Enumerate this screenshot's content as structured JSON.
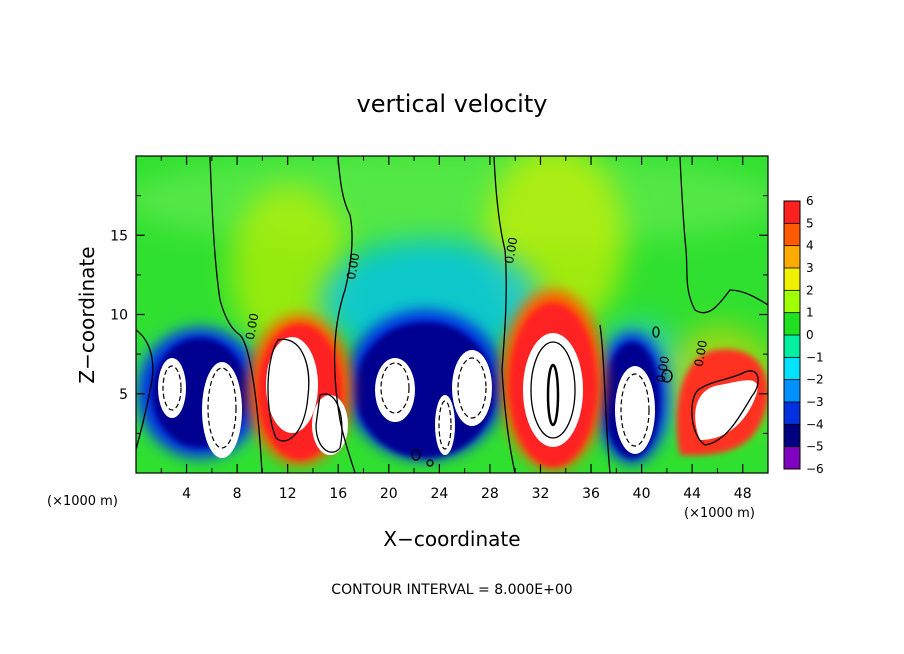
{
  "chart_data": {
    "type": "heatmap",
    "title": "vertical velocity",
    "xlabel": "X−coordinate",
    "ylabel": "Z−coordinate",
    "x_unit_left": "(×1000 m)",
    "x_unit_right": "(×1000 m)",
    "xlim": [
      0,
      50
    ],
    "ylim": [
      0,
      20
    ],
    "x_ticks": [
      4,
      8,
      12,
      16,
      20,
      24,
      28,
      32,
      36,
      40,
      44,
      48
    ],
    "x_tick_labels": [
      "4",
      "8",
      "12",
      "16",
      "20",
      "24",
      "28",
      "32",
      "36",
      "40",
      "44",
      "48"
    ],
    "y_ticks": [
      5,
      10,
      15
    ],
    "y_tick_labels": [
      "5",
      "10",
      "15"
    ],
    "colorbar": {
      "values": [
        6,
        5,
        4,
        3,
        2,
        1,
        0,
        -1,
        -2,
        -3,
        -4,
        -5,
        -6
      ],
      "labels": [
        "6",
        "5",
        "4",
        "3",
        "2",
        "1",
        "0",
        "−1",
        "−2",
        "−3",
        "−4",
        "−5",
        "−6"
      ],
      "colors": [
        "#f0a0a0",
        "#ff2020",
        "#ff5a00",
        "#ffaa00",
        "#f0f000",
        "#a0ff00",
        "#20e020",
        "#00f0a0",
        "#00e0ff",
        "#0090ff",
        "#0030e0",
        "#000080",
        "#8000c0"
      ]
    },
    "cells": [
      {
        "x": 4.5,
        "z": 5.0,
        "w": 3.0,
        "sign": -1
      },
      {
        "x": 7.0,
        "z": 4.5,
        "w": 3.2,
        "sign": -1
      },
      {
        "x": 12.0,
        "z": 5.5,
        "w": 3.0,
        "sign": 1
      },
      {
        "x": 15.0,
        "z": 3.5,
        "w": 2.2,
        "sign": 1
      },
      {
        "x": 20.0,
        "z": 5.0,
        "w": 3.2,
        "sign": -1
      },
      {
        "x": 24.5,
        "z": 4.0,
        "w": 2.2,
        "sign": -1
      },
      {
        "x": 27.0,
        "z": 5.0,
        "w": 3.2,
        "sign": -1
      },
      {
        "x": 33.0,
        "z": 5.5,
        "w": 4.5,
        "sign": 1
      },
      {
        "x": 39.5,
        "z": 4.0,
        "w": 3.0,
        "sign": -1
      },
      {
        "x": 46.5,
        "z": 4.5,
        "w": 3.2,
        "sign": 1
      }
    ],
    "contour_labels": [
      {
        "text": "0.00",
        "x": 9.5,
        "z": 9.2
      },
      {
        "text": "0.00",
        "x": 17.5,
        "z": 13.0
      },
      {
        "text": "0.00",
        "x": 30.0,
        "z": 14.0
      },
      {
        "text": "0.00",
        "x": 42.0,
        "z": 6.5
      },
      {
        "text": "0.00",
        "x": 45.0,
        "z": 7.5
      }
    ],
    "footer": "CONTOUR INTERVAL = 8.000E+00"
  }
}
